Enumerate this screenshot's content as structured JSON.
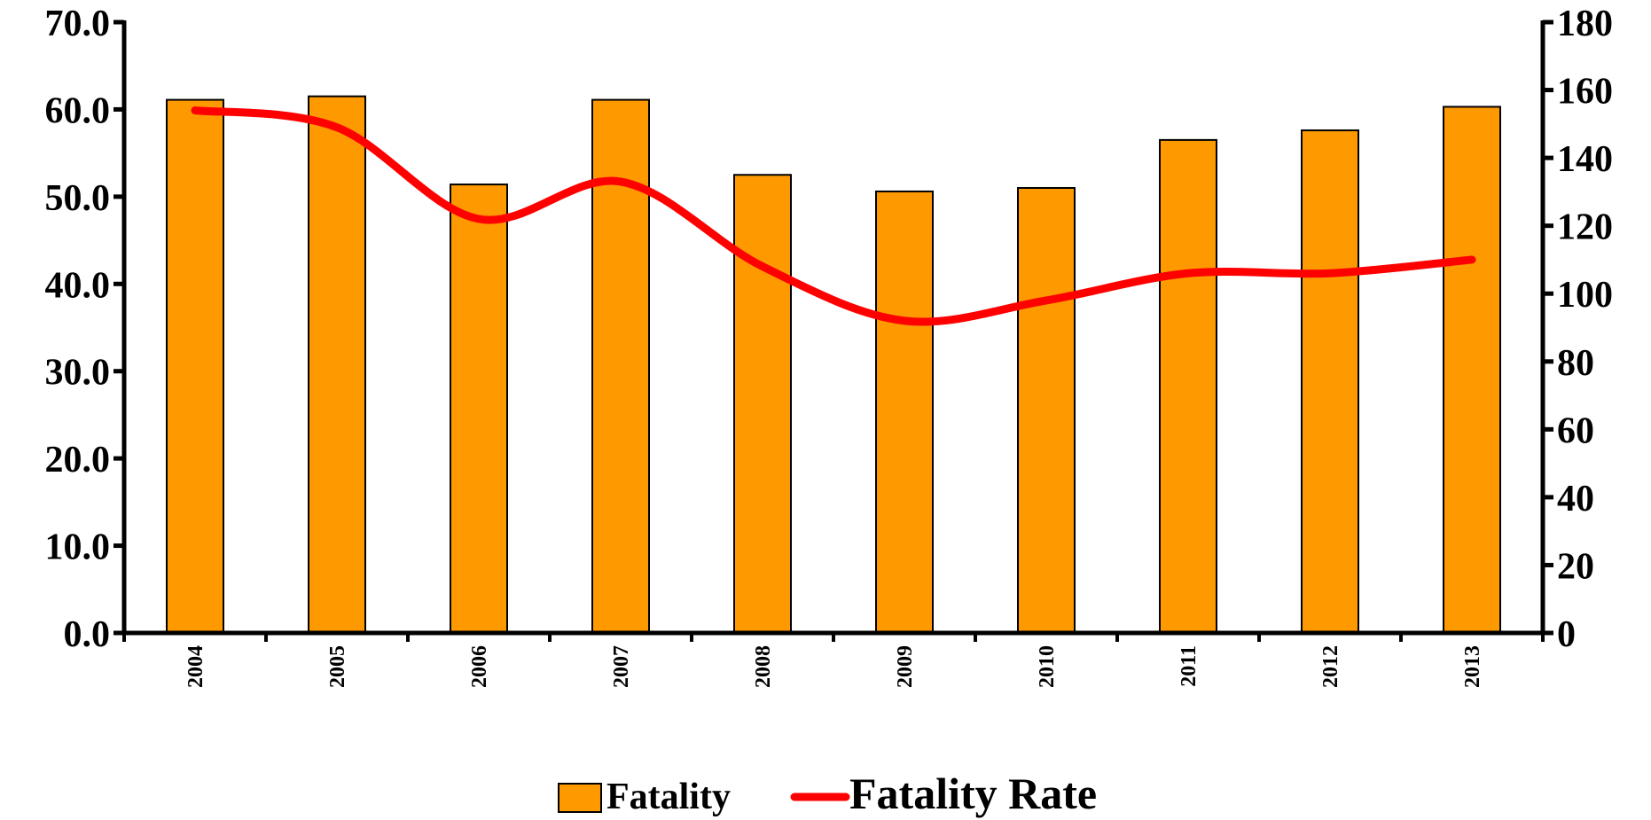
{
  "chart_data": {
    "type": "bar",
    "categories": [
      "2004",
      "2005",
      "2006",
      "2007",
      "2008",
      "2009",
      "2010",
      "2011",
      "2012",
      "2013"
    ],
    "series": [
      {
        "name": "Fatality",
        "type": "bar",
        "axis": "left",
        "color": "#FF9900",
        "values": [
          61.1,
          61.5,
          51.4,
          61.1,
          52.5,
          50.6,
          51.0,
          56.5,
          57.6,
          60.3
        ]
      },
      {
        "name": "Fatality Rate",
        "type": "line",
        "axis": "right",
        "color": "#FF0000",
        "values": [
          154,
          149,
          122,
          133,
          108,
          92,
          98,
          106,
          106,
          110
        ]
      }
    ],
    "y_left": {
      "min": 0,
      "max": 70,
      "step": 10,
      "ticks": [
        "0.0",
        "10.0",
        "20.0",
        "30.0",
        "40.0",
        "50.0",
        "60.0",
        "70.0"
      ]
    },
    "y_right": {
      "min": 0,
      "max": 180,
      "step": 20,
      "ticks": [
        "0",
        "20",
        "40",
        "60",
        "80",
        "100",
        "120",
        "140",
        "160",
        "180"
      ]
    },
    "legend": {
      "position": "bottom",
      "items": [
        "Fatality",
        "Fatality Rate"
      ]
    },
    "grid": false
  }
}
